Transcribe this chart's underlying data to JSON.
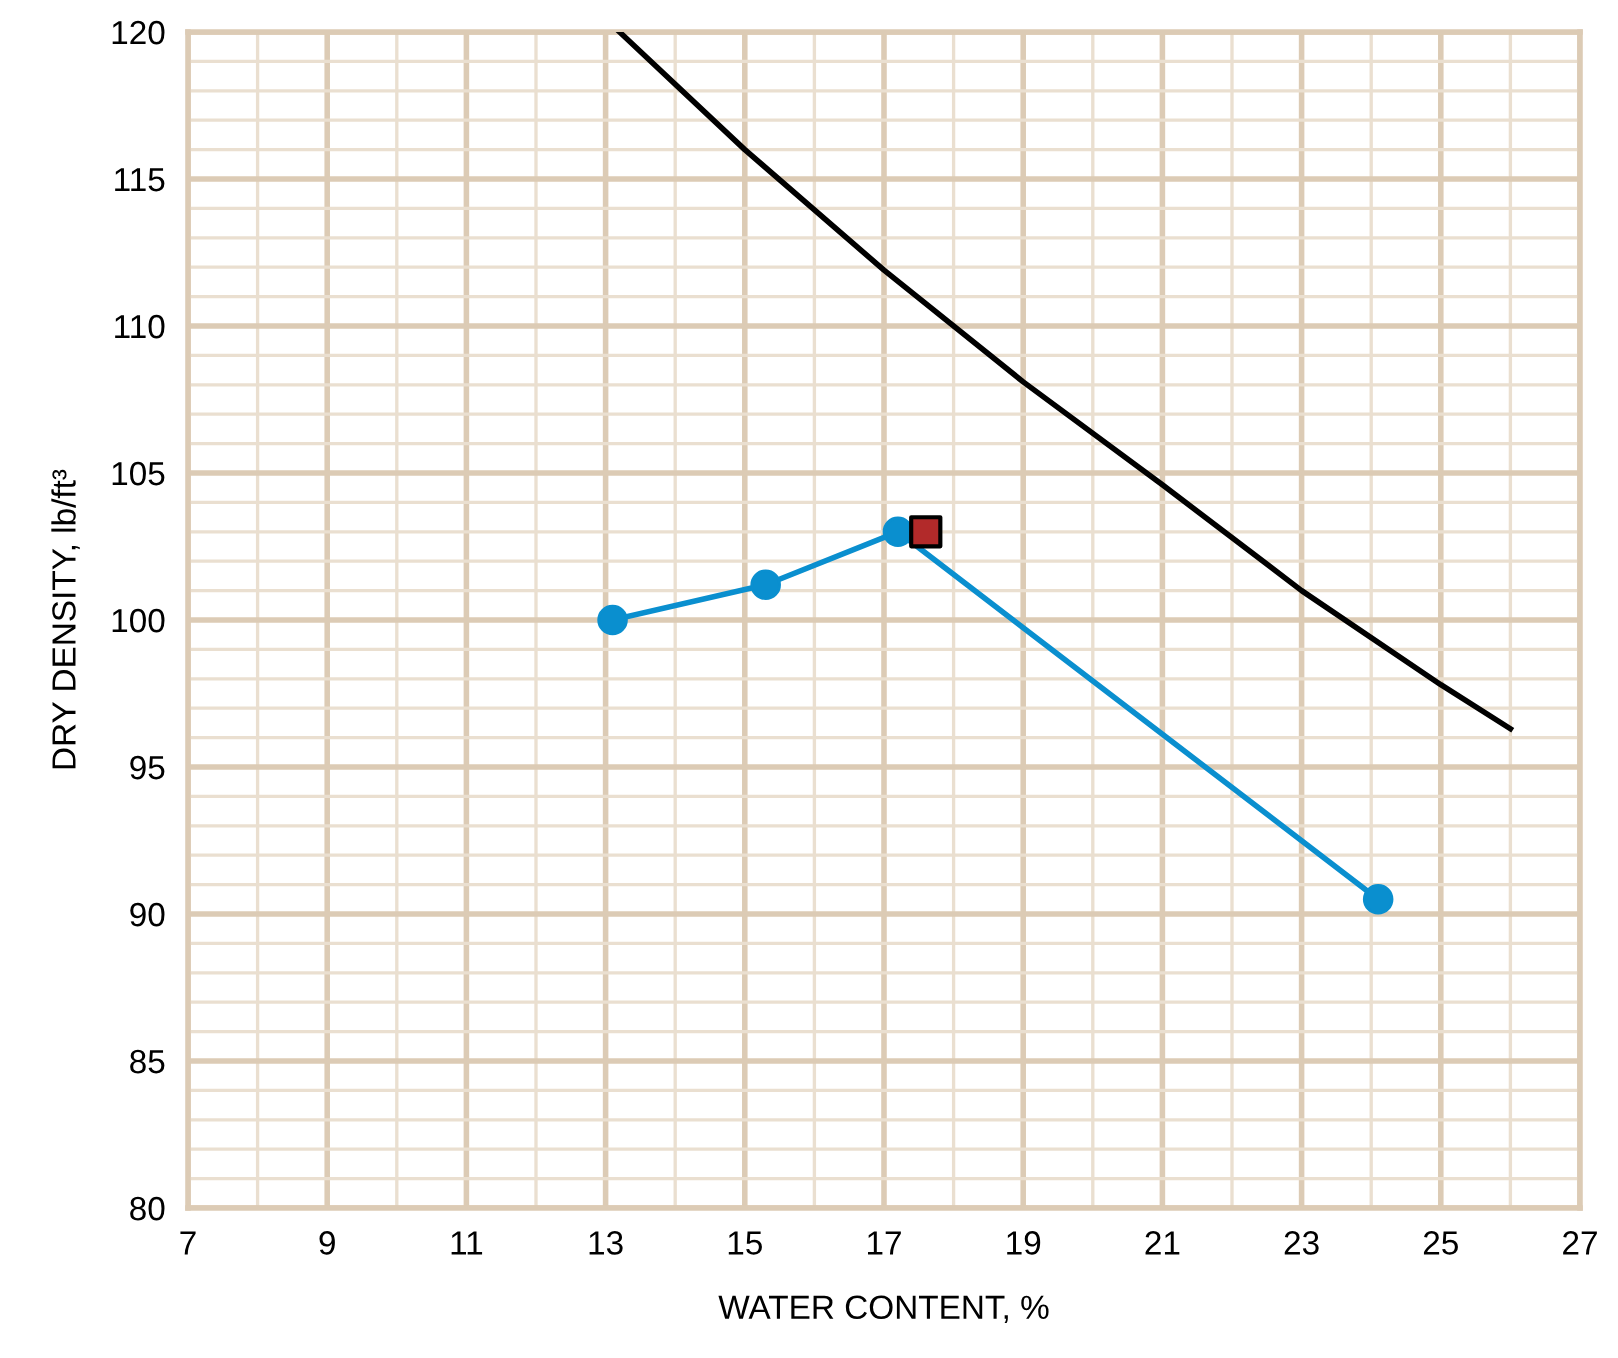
{
  "chart_data": {
    "type": "line",
    "xlabel": "WATER CONTENT, %",
    "ylabel": "DRY DENSITY, lb/ft³",
    "xlim": [
      7,
      27
    ],
    "xticks": [
      7,
      9,
      11,
      13,
      15,
      17,
      19,
      21,
      23,
      25,
      27
    ],
    "ylim": [
      80,
      120
    ],
    "yticks": [
      80,
      85,
      90,
      95,
      100,
      105,
      110,
      115,
      120
    ],
    "grid": true,
    "legend": false,
    "series": [
      {
        "color": "#000000",
        "marker": "none",
        "x": [
          13.2,
          15.0,
          17.0,
          19.0,
          21.0,
          23.0,
          25.0,
          26.0
        ],
        "values": [
          120,
          116.0,
          111.9,
          108.1,
          104.6,
          101.0,
          97.8,
          96.3
        ]
      },
      {
        "color": "#0a8fcf",
        "marker": "circle",
        "x": [
          13.1,
          15.3,
          17.2,
          24.1
        ],
        "values": [
          100.0,
          101.2,
          103.0,
          90.5
        ]
      },
      {
        "type": "scatter",
        "color": "#b22a2a",
        "marker": "square",
        "x": [
          17.6
        ],
        "values": [
          103.0
        ]
      }
    ]
  }
}
